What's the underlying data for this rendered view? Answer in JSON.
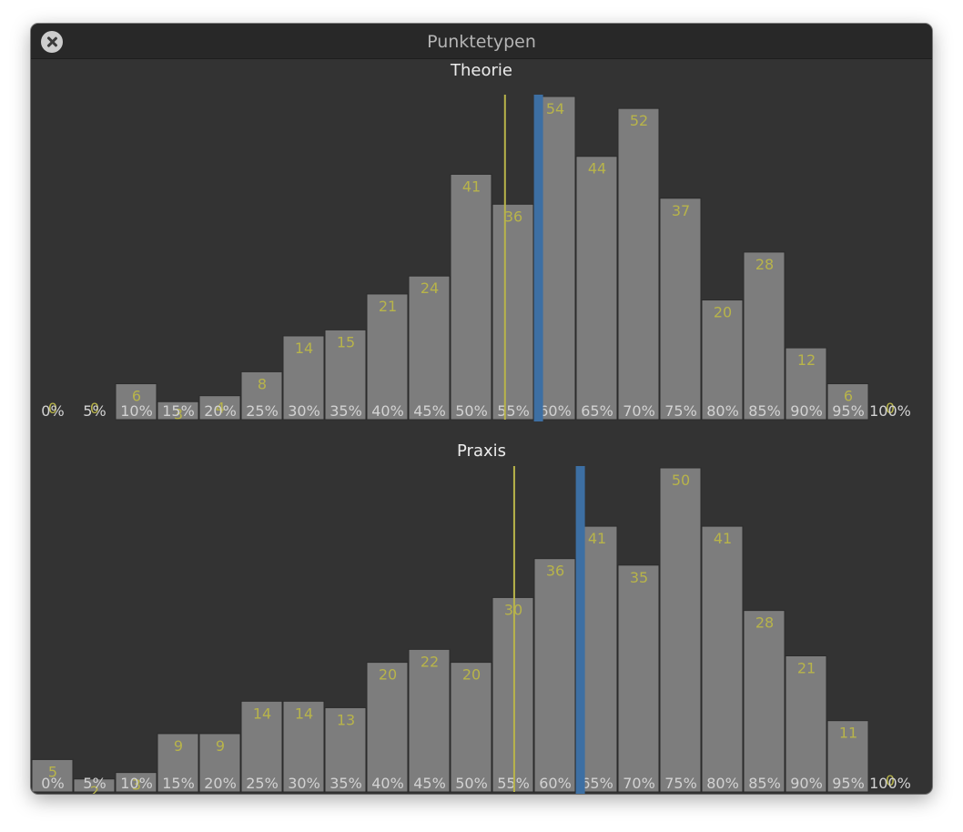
{
  "window": {
    "title": "Punktetypen",
    "close_icon": "close-icon"
  },
  "colors": {
    "background": "#333333",
    "bar": "#7d7d7d",
    "count_label": "#b8b44a",
    "tick_label": "#d2d2d2",
    "marker_line": "#b8b44a",
    "indicator": "#3d6fa3"
  },
  "chart_data": [
    {
      "type": "bar",
      "title": "Theorie",
      "categories": [
        "0%",
        "5%",
        "10%",
        "15%",
        "20%",
        "25%",
        "30%",
        "35%",
        "40%",
        "45%",
        "50%",
        "55%",
        "60%",
        "65%",
        "70%",
        "75%",
        "80%",
        "85%",
        "90%",
        "95%",
        "100%"
      ],
      "values": [
        0,
        0,
        6,
        3,
        4,
        8,
        14,
        15,
        21,
        24,
        41,
        36,
        54,
        44,
        52,
        37,
        20,
        28,
        12,
        6,
        0
      ],
      "marker_line_percent": 56.5,
      "highlight_percent": 60.5,
      "ylim": [
        0,
        54
      ]
    },
    {
      "type": "bar",
      "title": "Praxis",
      "categories": [
        "0%",
        "5%",
        "10%",
        "15%",
        "20%",
        "25%",
        "30%",
        "35%",
        "40%",
        "45%",
        "50%",
        "55%",
        "60%",
        "65%",
        "70%",
        "75%",
        "80%",
        "85%",
        "90%",
        "95%",
        "100%"
      ],
      "values": [
        5,
        2,
        3,
        9,
        9,
        14,
        14,
        13,
        20,
        22,
        20,
        30,
        36,
        41,
        35,
        50,
        41,
        28,
        21,
        11,
        0
      ],
      "marker_line_percent": 57.6,
      "highlight_percent": 65.5,
      "ylim": [
        0,
        50
      ]
    }
  ]
}
